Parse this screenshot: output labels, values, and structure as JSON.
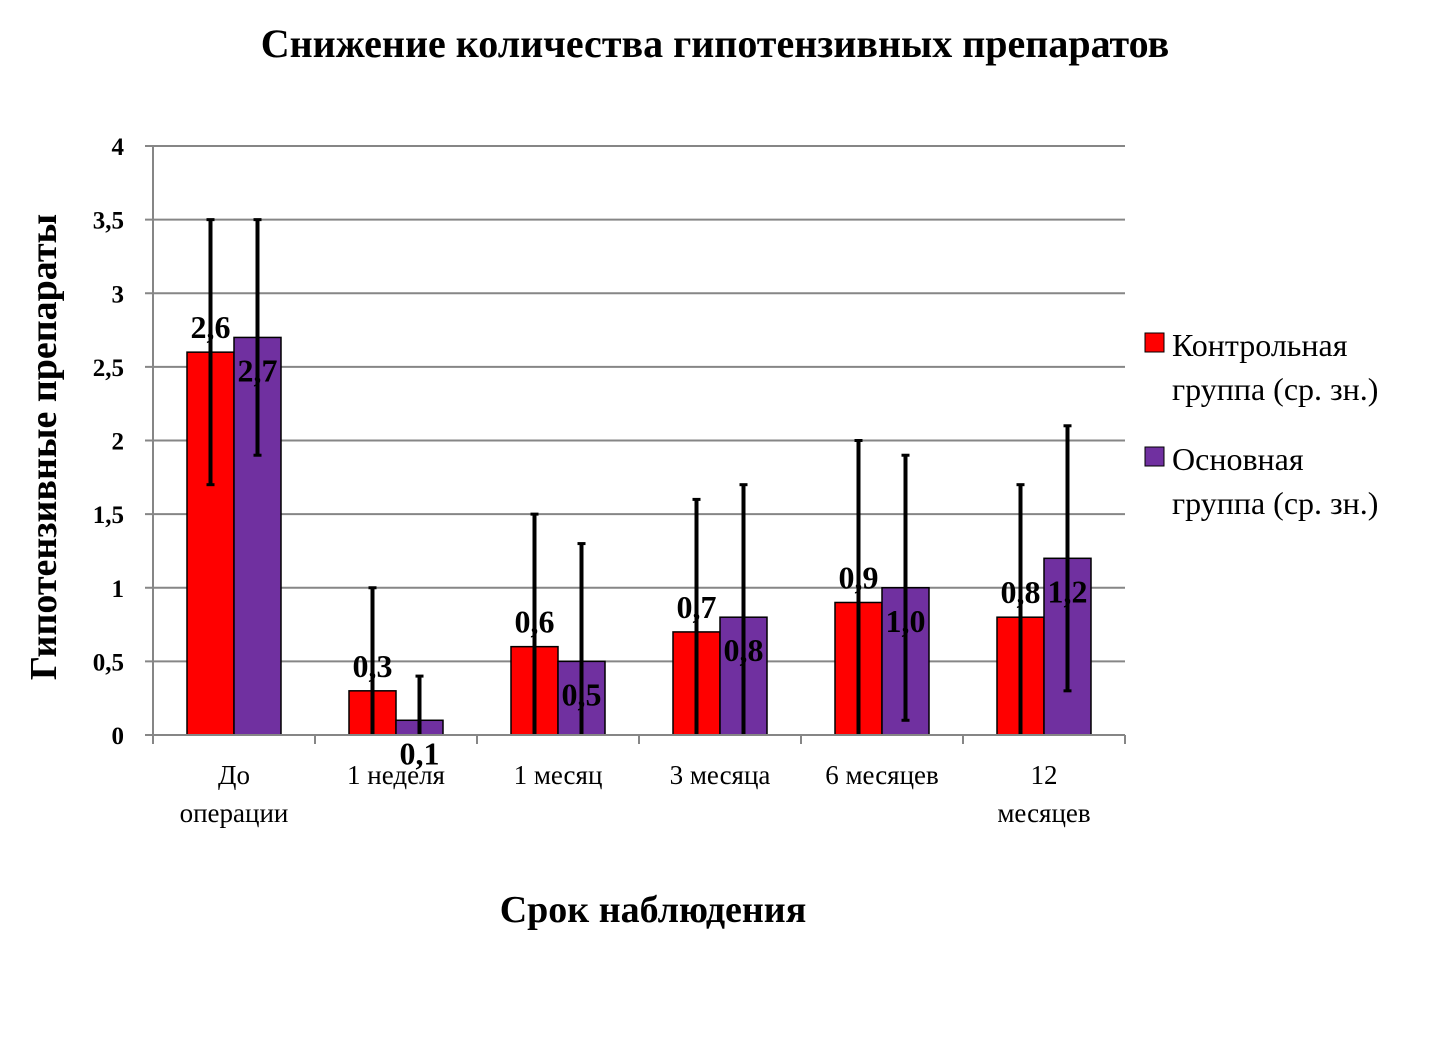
{
  "chart_data": {
    "type": "bar",
    "title": "Снижение количества гипотензивных препаратов",
    "xlabel": "Срок наблюдения",
    "ylabel": "Гипотензивные препараты",
    "ylim": [
      0,
      4
    ],
    "yticks": [
      "0",
      "0,5",
      "1",
      "1,5",
      "2",
      "2,5",
      "3",
      "3,5",
      "4"
    ],
    "ytick_values": [
      0,
      0.5,
      1,
      1.5,
      2,
      2.5,
      3,
      3.5,
      4
    ],
    "grid": true,
    "legend_position": "right",
    "categories": [
      [
        "До",
        "операции"
      ],
      [
        "1 неделя"
      ],
      [
        "1 месяц"
      ],
      [
        "3 месяца"
      ],
      [
        "6 месяцев"
      ],
      [
        "12",
        "месяцев"
      ]
    ],
    "series": [
      {
        "name_lines": [
          "Контрольная",
          "группа (ср. зн.)"
        ],
        "color": "#ff0000",
        "values": [
          2.6,
          0.3,
          0.6,
          0.7,
          0.9,
          0.8
        ],
        "labels": [
          "2,6",
          "0,3",
          "0,6",
          "0,7",
          "0,9",
          "0,8"
        ],
        "err_low": [
          1.7,
          0,
          0,
          0,
          0,
          0
        ],
        "err_high": [
          3.5,
          1.0,
          1.5,
          1.6,
          2.0,
          1.7
        ]
      },
      {
        "name_lines": [
          "Основная",
          "группа (ср. зн.)"
        ],
        "color": "#7030a0",
        "values": [
          2.7,
          0.1,
          0.5,
          0.8,
          1.0,
          1.2
        ],
        "labels": [
          "2,7",
          "0,1",
          "0,5",
          "0,8",
          "1,0",
          "1,2"
        ],
        "err_low": [
          1.9,
          0,
          0,
          0,
          0.1,
          0.3
        ],
        "err_high": [
          3.5,
          0.4,
          1.3,
          1.7,
          1.9,
          2.1
        ]
      }
    ]
  }
}
